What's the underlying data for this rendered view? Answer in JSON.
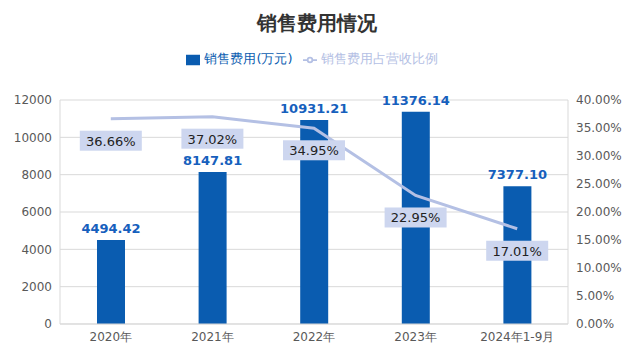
{
  "chart_data": {
    "type": "bar",
    "title": "销售费用情况",
    "categories": [
      "2020年",
      "2021年",
      "2022年",
      "2023年",
      "2024年1-9月"
    ],
    "series": [
      {
        "name": "销售费用(万元)",
        "type": "bar",
        "color": "#0a5cb0",
        "values": [
          4494.42,
          8147.81,
          10931.21,
          11376.14,
          7377.1
        ],
        "value_labels": [
          "4494.42",
          "8147.81",
          "10931.21",
          "11376.14",
          "7377.10"
        ]
      },
      {
        "name": "销售费用占营收比例",
        "type": "line",
        "axis": "y2",
        "color": "#b4c0e4",
        "values": [
          36.66,
          37.02,
          34.95,
          22.95,
          17.01
        ],
        "value_labels": [
          "36.66%",
          "37.02%",
          "34.95%",
          "22.95%",
          "17.01%"
        ]
      }
    ],
    "ylim": [
      0,
      12000
    ],
    "yticks": [
      0,
      2000,
      4000,
      6000,
      8000,
      10000,
      12000
    ],
    "y2lim": [
      0,
      40
    ],
    "y2ticks": [
      {
        "value": 0,
        "label": "0.00%"
      },
      {
        "value": 5,
        "label": "5.00%"
      },
      {
        "value": 10,
        "label": "10.00%"
      },
      {
        "value": 15,
        "label": "15.00%"
      },
      {
        "value": 20,
        "label": "20.00%"
      },
      {
        "value": 25,
        "label": "25.00%"
      },
      {
        "value": 30,
        "label": "30.00%"
      },
      {
        "value": 35,
        "label": "35.00%"
      },
      {
        "value": 40,
        "label": "40.00%"
      }
    ],
    "grid": true,
    "legend": "top",
    "data_labels": true
  }
}
